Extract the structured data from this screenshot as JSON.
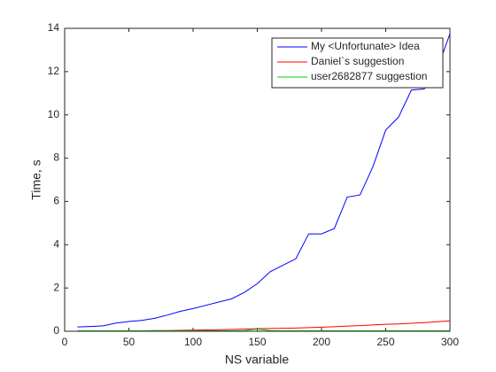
{
  "chart_data": {
    "type": "line",
    "x_label": "NS variable",
    "y_label": "Time, s",
    "x": [
      10,
      20,
      30,
      40,
      50,
      60,
      70,
      80,
      90,
      100,
      110,
      120,
      130,
      140,
      150,
      160,
      170,
      180,
      190,
      200,
      210,
      220,
      230,
      240,
      250,
      260,
      270,
      280,
      290,
      300
    ],
    "series": [
      {
        "name": "My <Unfortunate> Idea",
        "color": "#0000ff",
        "values": [
          0.2,
          0.22,
          0.25,
          0.38,
          0.45,
          0.5,
          0.6,
          0.75,
          0.92,
          1.05,
          1.2,
          1.35,
          1.5,
          1.8,
          2.2,
          2.75,
          3.05,
          3.35,
          4.5,
          4.5,
          4.75,
          6.2,
          6.3,
          7.6,
          9.3,
          9.9,
          11.15,
          11.2,
          12.1,
          13.75
        ]
      },
      {
        "name": "Daniel`s suggestion",
        "color": "#ff0000",
        "values": [
          0.01,
          0.01,
          0.01,
          0.01,
          0.02,
          0.02,
          0.03,
          0.03,
          0.04,
          0.05,
          0.06,
          0.07,
          0.08,
          0.1,
          0.12,
          0.13,
          0.14,
          0.15,
          0.17,
          0.19,
          0.21,
          0.24,
          0.26,
          0.29,
          0.32,
          0.34,
          0.37,
          0.4,
          0.44,
          0.48
        ]
      },
      {
        "name": "user2682877 suggestion",
        "color": "#00cc00",
        "values": [
          0.02,
          0.02,
          0.02,
          0.02,
          0.02,
          0.02,
          0.02,
          0.02,
          0.02,
          0.02,
          0.02,
          0.02,
          0.02,
          0.03,
          0.1,
          0.03,
          0.02,
          0.02,
          0.02,
          0.02,
          0.02,
          0.02,
          0.02,
          0.02,
          0.02,
          0.02,
          0.02,
          0.02,
          0.02,
          0.02
        ]
      }
    ],
    "xlim": [
      0,
      300
    ],
    "xticks": [
      0,
      50,
      100,
      150,
      200,
      250,
      300
    ],
    "ylim": [
      0,
      14
    ],
    "yticks": [
      0,
      2,
      4,
      6,
      8,
      10,
      12,
      14
    ],
    "legend": "upper-right"
  }
}
